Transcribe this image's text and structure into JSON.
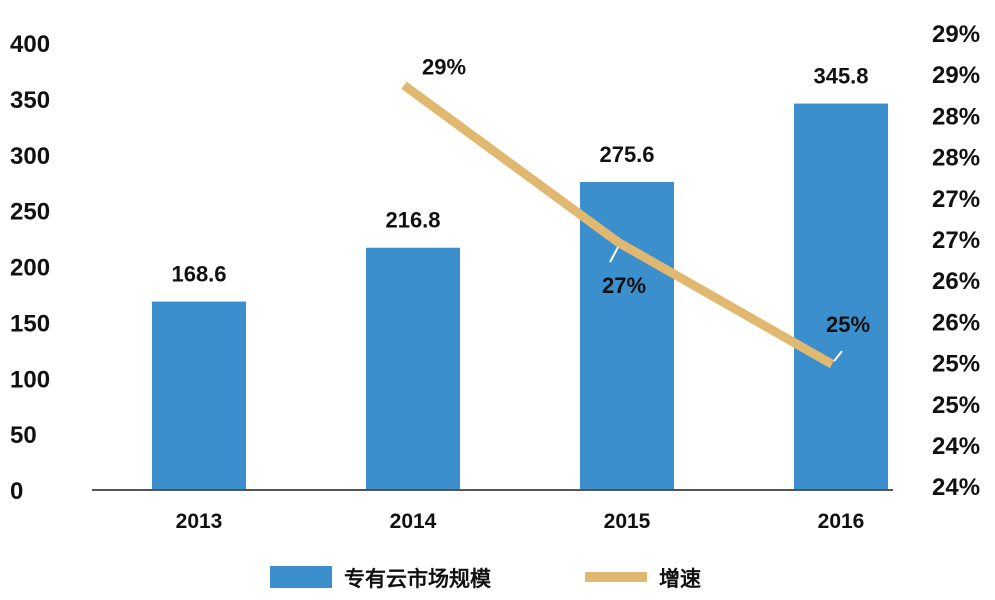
{
  "chart_data": {
    "type": "bar",
    "categories": [
      "2013",
      "2014",
      "2015",
      "2016"
    ],
    "series": [
      {
        "name": "专有云市场规模",
        "type": "bar",
        "axis": "left",
        "color": "#3a8fcc",
        "values": [
          168.6,
          216.8,
          275.6,
          345.8
        ],
        "labels": [
          "168.6",
          "216.8",
          "275.6",
          "345.8"
        ]
      },
      {
        "name": "增速",
        "type": "line",
        "axis": "right",
        "color": "#e0b86f",
        "values": [
          null,
          28.6,
          26.8,
          25.4
        ],
        "labels": [
          "",
          "29%",
          "27%",
          "25%"
        ]
      }
    ],
    "ylim": [
      0,
      400
    ],
    "y_ticks": [
      "0",
      "50",
      "100",
      "150",
      "200",
      "250",
      "300",
      "350",
      "400"
    ],
    "y2lim": [
      24.0,
      29.2
    ],
    "y2_ticks": [
      "24%",
      "24%",
      "25%",
      "25%",
      "26%",
      "26%",
      "27%",
      "27%",
      "28%",
      "28%",
      "29%",
      "29%"
    ],
    "grid": false,
    "legend_position": "bottom"
  }
}
